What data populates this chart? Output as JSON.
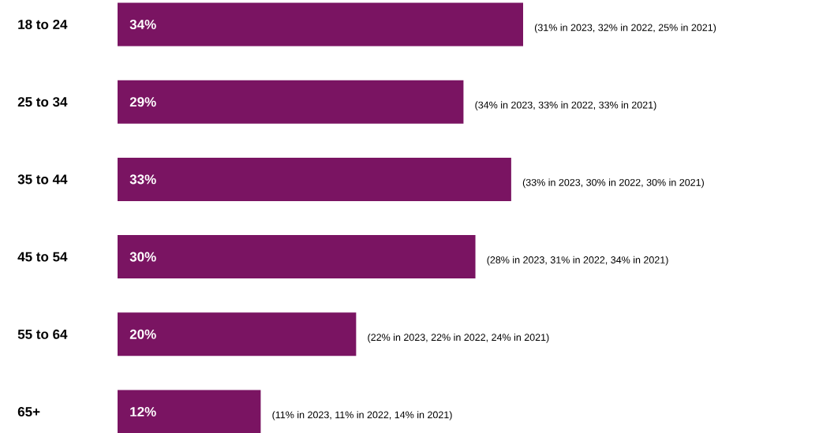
{
  "chart_data": {
    "type": "bar",
    "orientation": "horizontal",
    "categories": [
      "18 to 24",
      "25 to 34",
      "35 to 44",
      "45 to 54",
      "55 to 64",
      "65+"
    ],
    "values": [
      34,
      29,
      33,
      30,
      20,
      12
    ],
    "value_labels": [
      "34%",
      "29%",
      "33%",
      "30%",
      "20%",
      "12%"
    ],
    "color": "#7a1462",
    "annotations": [
      "(31% in 2023, 32% in 2022, 25% in 2021)",
      "(34% in 2023, 33% in 2022, 33% in 2021)",
      "(33% in 2023, 30% in 2022, 30% in 2021)",
      "(28% in 2023, 31% in 2022, 34% in 2021)",
      "(22% in 2023, 22% in 2022, 24% in 2021)",
      "(11% in 2023, 11% in 2022, 14% in 2021)"
    ]
  }
}
